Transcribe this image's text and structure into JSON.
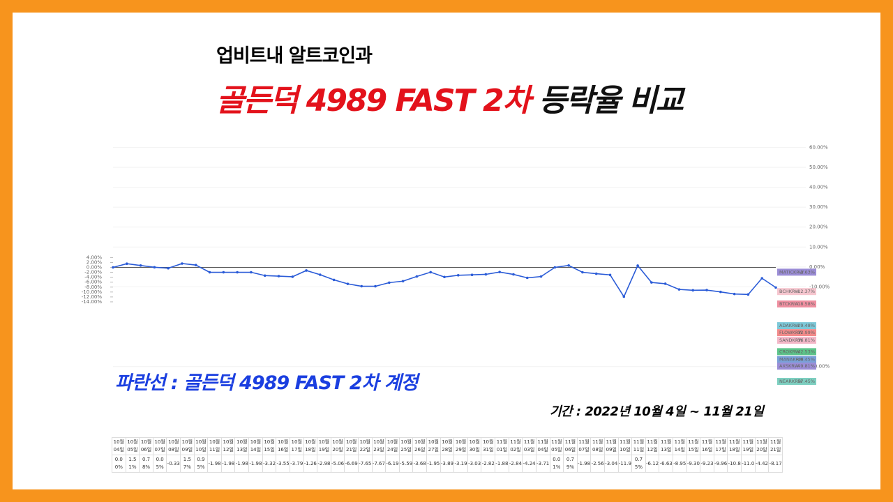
{
  "header": {
    "subtitle": "업비트내 알트코인과",
    "title_red": "골든덕 4989 FAST 2차",
    "title_black": "등락율 비교"
  },
  "annotation": "파란선 : 골든덕 4989 FAST 2차 계정",
  "period": "기간 : 2022년 10월 4일 ~ 11월 21일",
  "chart_data": {
    "type": "line",
    "categories": [
      "10월04일",
      "10월05일",
      "10월06일",
      "10월07일",
      "10월08일",
      "10월09일",
      "10월10일",
      "10월11일",
      "10월12일",
      "10월13일",
      "10월14일",
      "10월15일",
      "10월16일",
      "10월17일",
      "10월18일",
      "10월19일",
      "10월20일",
      "10월21일",
      "10월22일",
      "10월23일",
      "10월24일",
      "10월25일",
      "10월26일",
      "10월27일",
      "10월28일",
      "10월29일",
      "10월30일",
      "10월31일",
      "11월01일",
      "11월02일",
      "11월03일",
      "11월04일",
      "11월05일",
      "11월06일",
      "11월07일",
      "11월08일",
      "11월09일",
      "11월10일",
      "11월11일",
      "11월12일",
      "11월13일",
      "11월14일",
      "11월15일",
      "11월16일",
      "11월17일",
      "11월18일",
      "11월19일",
      "11월20일",
      "11월21일"
    ],
    "series": [
      {
        "color": "#2a5bd7",
        "values": [
          0,
          1.51,
          0.78,
          0.05,
          -0.33,
          1.57,
          0.95,
          -1.98,
          -1.98,
          -1.98,
          -1.98,
          -3.32,
          -3.55,
          -3.79,
          -1.26,
          -2.98,
          -5.06,
          -6.69,
          -7.65,
          -7.67,
          -6.19,
          -5.59,
          -3.68,
          -1.95,
          -3.89,
          -3.19,
          -3.03,
          -2.82,
          -1.88,
          -2.84,
          -4.24,
          -3.71,
          0.01,
          0.79,
          -1.98,
          -2.56,
          -3.04,
          -11.9,
          0.75,
          -6.12,
          -6.63,
          -8.95,
          -9.3,
          -9.23,
          -9.96,
          -10.8,
          -11.0,
          -4.42,
          -8.17
        ],
        "value_labels": [
          "0.00%",
          "1.51%",
          "0.78%",
          "0.05%",
          "-0.33",
          "1.57%",
          "0.95%",
          "-1.98",
          "-1.98",
          "-1.98",
          "-1.98",
          "-3.32",
          "-3.55",
          "-3.79",
          "-1.26",
          "-2.98",
          "-5.06",
          "-6.69",
          "-7.65",
          "-7.67",
          "-6.19",
          "-5.59",
          "-3.68",
          "-1.95",
          "-3.89",
          "-3.19",
          "-3.03",
          "-2.82",
          "-1.88",
          "-2.84",
          "-4.24",
          "-3.71",
          "0.01%",
          "0.79%",
          "-1.98",
          "-2.56",
          "-3.04",
          "-11.9",
          "0.75%",
          "-6.12",
          "-6.63",
          "-8.95",
          "-9.30",
          "-9.23",
          "-9.96",
          "-10.8",
          "-11.0",
          "-4.42",
          "-8.17"
        ]
      }
    ],
    "ylim": [
      -50,
      52
    ],
    "yticks": [
      {
        "value": 4,
        "label": "4.00%"
      },
      {
        "value": 2,
        "label": "2.00%"
      },
      {
        "value": 0,
        "label": "0.00%"
      },
      {
        "value": -2,
        "label": "-2.00%"
      },
      {
        "value": -4,
        "label": "-4.00%"
      },
      {
        "value": -6,
        "label": "-6.00%"
      },
      {
        "value": -8,
        "label": "-8.00%"
      },
      {
        "value": -10,
        "label": "-10.00%"
      },
      {
        "value": -12,
        "label": "-12.00%"
      },
      {
        "value": -14,
        "label": "-14.00%"
      }
    ],
    "y2lim": [
      -62,
      64
    ],
    "y2ticks": [
      {
        "value": 60,
        "label": "60.00%"
      },
      {
        "value": 50,
        "label": "50.00%"
      },
      {
        "value": 40,
        "label": "40.00%"
      },
      {
        "value": 30,
        "label": "30.00%"
      },
      {
        "value": 20,
        "label": "20.00%"
      },
      {
        "value": 10,
        "label": "10.00%"
      },
      {
        "value": 0,
        "label": "0.00%"
      },
      {
        "value": -10,
        "label": "-10.00%"
      },
      {
        "value": -50,
        "label": "-50.00%"
      }
    ],
    "coins": [
      {
        "name": "MATICKRW",
        "value": -2.63,
        "value_label": "-2.63%",
        "color": "#9b8dd6"
      },
      {
        "name": "BCHKRW",
        "value": -12.37,
        "value_label": "-12.37%",
        "color": "#f6c6cf"
      },
      {
        "name": "BTCKRW",
        "value": -18.58,
        "value_label": "-18.58%",
        "color": "#ef8fa0"
      },
      {
        "name": "ADAKRW",
        "value": -29.48,
        "value_label": "-29.48%",
        "color": "#7dc8d8"
      },
      {
        "name": "FLOWKRW",
        "value": -32.99,
        "value_label": "-32.99%",
        "color": "#f28a8a"
      },
      {
        "name": "SANDKRW",
        "value": -36.81,
        "value_label": "-36.81%",
        "color": "#f4b8c8"
      },
      {
        "name": "CROKRW",
        "value": -42.53,
        "value_label": "-42.53%",
        "color": "#5cc48a"
      },
      {
        "name": "MANAKRW",
        "value": -46.45,
        "value_label": "-46.45%",
        "color": "#7aa0d8"
      },
      {
        "name": "AXSKRW",
        "value": -49.81,
        "value_label": "-49.81%",
        "color": "#9b8dd6"
      },
      {
        "name": "NEARKRW",
        "value": -57.45,
        "value_label": "-57.45%",
        "color": "#7dcfc0"
      }
    ]
  }
}
